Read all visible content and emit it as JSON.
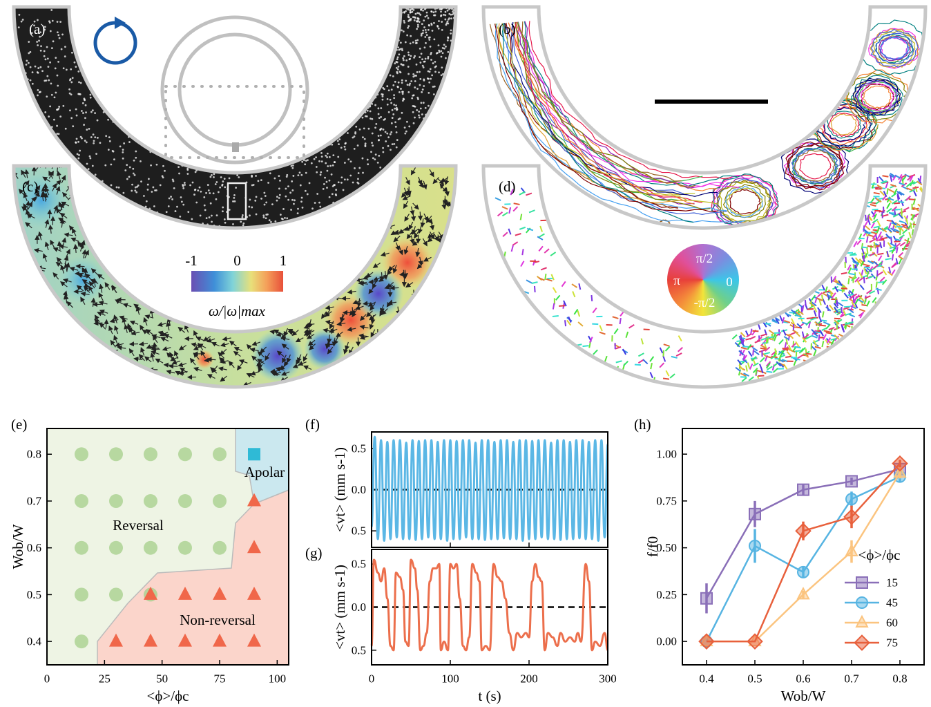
{
  "panels": {
    "a": {
      "label": "(a)"
    },
    "b": {
      "label": "(b)"
    },
    "c": {
      "label": "(c)",
      "colorbar": {
        "lim": [
          -1,
          1
        ],
        "ticks": [
          -1,
          0,
          1
        ],
        "label": "ω/|ω|max"
      }
    },
    "d": {
      "label": "(d)",
      "wheel": {
        "labels": [
          "π/2",
          "π",
          "0",
          "-π/2"
        ]
      }
    }
  },
  "chart_data": [
    {
      "type": "scatter",
      "label": "(e)",
      "xlabel": "<ϕ>/ϕc",
      "ylabel": "Wob/W",
      "xlim": [
        0,
        105
      ],
      "ylim": [
        0.35,
        0.855
      ],
      "xticks": [
        0,
        25,
        50,
        75,
        100
      ],
      "yticks": [
        0.4,
        0.5,
        0.6,
        0.7,
        0.8
      ],
      "series": [
        {
          "name": "Reversal",
          "marker": "circle",
          "color": "#a9d18e",
          "x": [
            15,
            30,
            45,
            60,
            75,
            15,
            30,
            45,
            60,
            75,
            15,
            30,
            45,
            60,
            75,
            15,
            30,
            45,
            15
          ],
          "y": [
            0.8,
            0.8,
            0.8,
            0.8,
            0.8,
            0.7,
            0.7,
            0.7,
            0.7,
            0.7,
            0.6,
            0.6,
            0.6,
            0.6,
            0.6,
            0.5,
            0.5,
            0.5,
            0.4
          ]
        },
        {
          "name": "Non-reversal",
          "marker": "triangle",
          "color": "#f0674a",
          "x": [
            90,
            90,
            45,
            60,
            75,
            90,
            30,
            45,
            60,
            75,
            90
          ],
          "y": [
            0.7,
            0.6,
            0.5,
            0.5,
            0.5,
            0.5,
            0.4,
            0.4,
            0.4,
            0.4,
            0.4
          ]
        },
        {
          "name": "Apolar",
          "marker": "square",
          "color": "#2fbad6",
          "x": [
            90
          ],
          "y": [
            0.8
          ]
        }
      ]
    },
    {
      "type": "line",
      "label": "(f)",
      "ylabel": "<vt> (mm s-1)",
      "xlim": [
        0,
        300
      ],
      "ylim": [
        -0.7,
        0.7
      ],
      "xticks": [
        0,
        100,
        200,
        300
      ],
      "xtick_labels": false,
      "zero_line": true,
      "yticks": [
        {
          "value": -0.5,
          "label": "0.5"
        },
        {
          "value": 0,
          "label": "0.0"
        },
        0.5
      ],
      "series": [
        {
          "color": "#5bb7e5",
          "x": [
            0,
            4,
            8,
            12,
            16,
            20,
            24,
            28,
            32,
            36,
            40,
            44,
            48,
            52,
            56,
            60,
            64,
            68,
            72,
            76,
            80,
            84,
            88,
            92,
            96,
            100,
            104,
            108,
            112,
            116,
            120,
            124,
            128,
            132,
            136,
            140,
            144,
            148,
            152,
            156,
            160,
            164,
            168,
            172,
            176,
            180,
            184,
            188,
            192,
            196,
            200,
            204,
            208,
            212,
            216,
            220,
            224,
            228,
            232,
            236,
            240,
            244,
            248,
            252,
            256,
            260,
            264,
            268,
            272,
            276,
            280,
            284,
            288,
            292,
            296,
            300
          ],
          "values": [
            -0.45,
            0.64,
            -0.6,
            0.6,
            -0.62,
            0.58,
            -0.6,
            0.6,
            -0.58,
            0.6,
            -0.6,
            0.57,
            -0.6,
            0.6,
            -0.61,
            0.59,
            -0.6,
            0.6,
            -0.58,
            0.6,
            -0.6,
            0.58,
            -0.6,
            0.6,
            -0.62,
            0.6,
            -0.6,
            0.59,
            -0.6,
            0.6,
            -0.58,
            0.6,
            -0.6,
            0.57,
            -0.6,
            0.6,
            -0.61,
            0.6,
            -0.6,
            0.58,
            -0.6,
            0.6,
            -0.59,
            0.6,
            -0.6,
            0.58,
            -0.6,
            0.6,
            -0.62,
            0.6,
            -0.6,
            0.59,
            -0.6,
            0.6,
            -0.58,
            0.6,
            -0.6,
            0.57,
            -0.6,
            0.6,
            -0.61,
            0.6,
            -0.6,
            0.58,
            -0.6,
            0.6,
            -0.59,
            0.6,
            -0.6,
            0.58,
            -0.6,
            0.6,
            -0.62,
            0.6,
            -0.58,
            0.55
          ]
        }
      ]
    },
    {
      "type": "line",
      "label": "(g)",
      "xlabel": "t (s)",
      "ylabel": "<vt> (mm s-1)",
      "xlim": [
        0,
        300
      ],
      "ylim": [
        -0.67,
        0.67
      ],
      "xticks": [
        0,
        100,
        200,
        300
      ],
      "xtick_labels": true,
      "zero_line": true,
      "yticks": [
        {
          "value": -0.5,
          "label": "0.5"
        },
        {
          "value": 0,
          "label": "0.0"
        },
        0.5
      ],
      "series": [
        {
          "color": "#ec6f4c",
          "x": [
            0,
            3,
            8,
            12,
            16,
            20,
            24,
            28,
            31,
            36,
            40,
            43,
            47,
            50,
            55,
            58,
            62,
            66,
            70,
            74,
            78,
            82,
            86,
            88,
            92,
            97,
            100,
            104,
            108,
            112,
            116,
            120,
            124,
            128,
            133,
            137,
            140,
            145,
            150,
            155,
            160,
            165,
            170,
            175,
            180,
            185,
            190,
            196,
            200,
            204,
            208,
            212,
            216,
            220,
            224,
            230,
            236,
            240,
            246,
            252,
            258,
            262,
            266,
            272,
            276,
            280,
            284,
            290,
            296,
            300
          ],
          "values": [
            -0.45,
            0.55,
            0.4,
            0.3,
            0.45,
            0.1,
            -0.45,
            -0.5,
            0.4,
            0.35,
            0.2,
            -0.4,
            -0.45,
            0.55,
            0.45,
            0.2,
            -0.5,
            -0.45,
            -0.3,
            0.3,
            0.45,
            0.45,
            0.5,
            -0.5,
            -0.4,
            -0.5,
            0.5,
            0.45,
            0.5,
            0.1,
            -0.45,
            -0.5,
            -0.35,
            0.5,
            0.4,
            0.3,
            -0.5,
            -0.45,
            -0.5,
            0.5,
            0.35,
            0.3,
            0.1,
            -0.3,
            -0.5,
            -0.3,
            -0.35,
            -0.3,
            -0.35,
            0.3,
            0.5,
            0.35,
            0.3,
            -0.5,
            -0.3,
            -0.35,
            -0.45,
            -0.3,
            -0.4,
            -0.35,
            -0.4,
            -0.3,
            -0.4,
            0.5,
            0.3,
            -0.5,
            -0.4,
            -0.45,
            -0.3,
            -0.5
          ]
        }
      ]
    },
    {
      "type": "line",
      "label": "(h)",
      "xlabel": "Wob/W",
      "ylabel": "f/f0",
      "legend_title": "<ϕ>/ϕc",
      "legend": "lower right",
      "xlim": [
        0.35,
        0.85
      ],
      "ylim": [
        -0.125,
        1.137
      ],
      "xticks": [
        0.4,
        0.5,
        0.6,
        0.7,
        0.8
      ],
      "yticks": [
        {
          "value": 0,
          "label": "0.00"
        },
        {
          "value": 0.25,
          "label": "0.25"
        },
        {
          "value": 0.5,
          "label": "0.50"
        },
        {
          "value": 0.75,
          "label": "0.75"
        },
        {
          "value": 1,
          "label": "1.00"
        }
      ],
      "x": [
        0.4,
        0.5,
        0.6,
        0.7,
        0.8
      ],
      "series": [
        {
          "name": "15",
          "color": "#8a6fb8",
          "marker": "square",
          "values": [
            0.23,
            0.68,
            0.81,
            0.855,
            0.92
          ],
          "errors": [
            0.08,
            0.07,
            0.03,
            0.02,
            0.02
          ]
        },
        {
          "name": "45",
          "color": "#56b4e2",
          "marker": "circle",
          "values": [
            0,
            0.51,
            0.37,
            0.76,
            0.88
          ],
          "errors": [
            0,
            0.09,
            0.03,
            0.04,
            0.03
          ]
        },
        {
          "name": "60",
          "color": "#fbc47f",
          "marker": "triangle",
          "values": [
            0,
            0,
            0.25,
            0.48,
            0.9
          ],
          "errors": [
            0,
            0,
            0.02,
            0.06,
            0.03
          ]
        },
        {
          "name": "75",
          "color": "#e8603c",
          "marker": "diamond",
          "values": [
            0,
            0,
            0.59,
            0.665,
            0.95
          ],
          "errors": [
            0,
            0,
            0.05,
            0.06,
            0.02
          ]
        }
      ]
    }
  ]
}
